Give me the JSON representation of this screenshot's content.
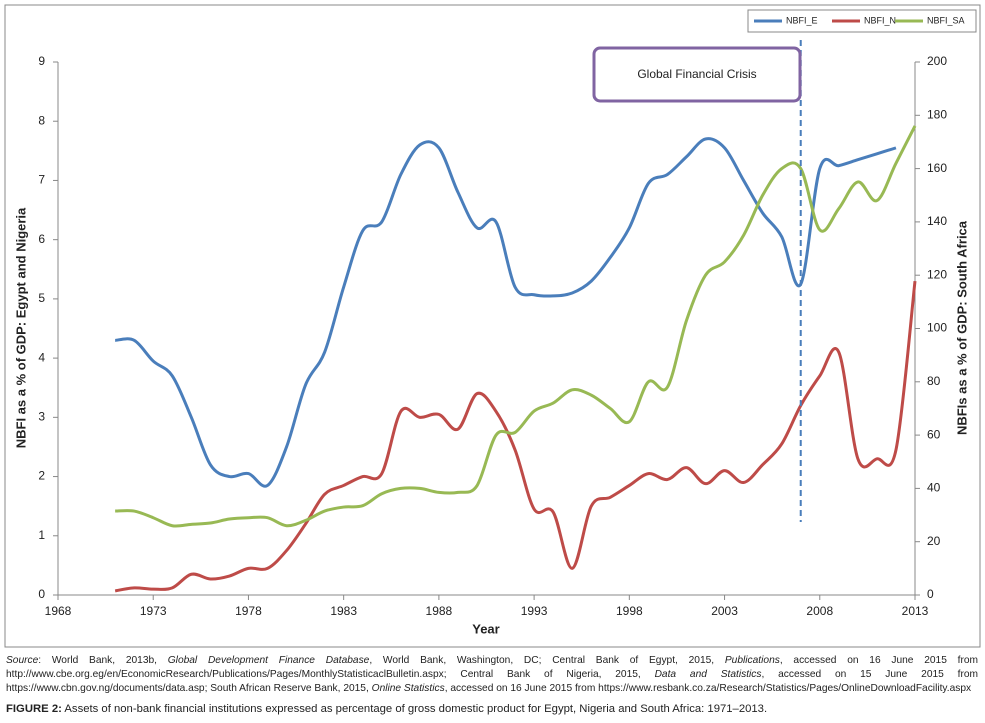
{
  "chart_data": {
    "type": "line",
    "x_label": "Year",
    "y_label": "NBFI as a % of GDP: Egypt and Nigeria",
    "y2_label": "NBFIs as a % of GDP: South Africa",
    "x": [
      1971,
      1972,
      1973,
      1974,
      1975,
      1976,
      1977,
      1978,
      1979,
      1980,
      1981,
      1982,
      1983,
      1984,
      1985,
      1986,
      1987,
      1988,
      1989,
      1990,
      1991,
      1992,
      1993,
      1994,
      1995,
      1996,
      1997,
      1998,
      1999,
      2000,
      2001,
      2002,
      2003,
      2004,
      2005,
      2006,
      2007,
      2008,
      2009,
      2010,
      2011,
      2012,
      2013
    ],
    "series": [
      {
        "name": "NBFI_E",
        "color": "#4a7ebb",
        "values": [
          4.3,
          4.3,
          3.95,
          3.7,
          3.0,
          2.2,
          2.0,
          2.05,
          1.85,
          2.5,
          3.55,
          4.1,
          5.2,
          6.15,
          6.3,
          7.1,
          7.6,
          7.55,
          6.8,
          6.2,
          6.3,
          5.2,
          5.07,
          5.05,
          5.1,
          5.3,
          5.7,
          6.2,
          6.95,
          7.1,
          7.4,
          7.7,
          7.55,
          7.0,
          6.45,
          6.05,
          5.25,
          7.2,
          7.25,
          7.35,
          7.45,
          7.55,
          null
        ]
      },
      {
        "name": "NBFI_N",
        "color": "#be4b48",
        "values": [
          0.07,
          0.12,
          0.1,
          0.12,
          0.35,
          0.27,
          0.32,
          0.45,
          0.45,
          0.75,
          1.2,
          1.7,
          1.85,
          2.0,
          2.05,
          3.1,
          3.0,
          3.05,
          2.8,
          3.4,
          3.1,
          2.45,
          1.45,
          1.4,
          0.45,
          1.5,
          1.65,
          1.85,
          2.05,
          1.95,
          2.15,
          1.88,
          2.1,
          1.9,
          2.2,
          2.55,
          3.2,
          3.7,
          4.1,
          2.3,
          2.3,
          2.45,
          5.3
        ]
      },
      {
        "name": "NBFI_SA",
        "color": "#98b954",
        "axis": "y2",
        "values": [
          31.5,
          31.5,
          29,
          26,
          26.5,
          27,
          28.5,
          29,
          29,
          26,
          28,
          31.5,
          33,
          33.5,
          38,
          40,
          40,
          38.5,
          38.5,
          41,
          60,
          61,
          69,
          72,
          77,
          75,
          70,
          65,
          80,
          78,
          103,
          120,
          125,
          135,
          150,
          160,
          160,
          137,
          145,
          155,
          148,
          162,
          176
        ]
      }
    ],
    "xlim": [
      1968,
      2013
    ],
    "xticks": [
      1968,
      1973,
      1978,
      1983,
      1988,
      1993,
      1998,
      2003,
      2008,
      2013
    ],
    "ylim": [
      0,
      9
    ],
    "yticks": [
      0,
      1,
      2,
      3,
      4,
      5,
      6,
      7,
      8,
      9
    ],
    "y2lim": [
      0,
      200
    ],
    "y2ticks": [
      0,
      20,
      40,
      60,
      80,
      100,
      120,
      140,
      160,
      180,
      200
    ],
    "legend": "top-right",
    "annotations": [
      {
        "text": "Global Financial Crisis",
        "x": 2007,
        "color": "#8064a2"
      }
    ]
  },
  "source": [
    "Source",
    ": World Bank, 2013b, ",
    "Global Development Finance Database",
    ", World Bank, Washington, DC; Central Bank of Egypt, 2015, ",
    "Publications",
    ", accessed on 16 June 2015 from http://www.cbe.org.eg/en/EconomicResearch/Publications/Pages/MonthlyStatisticaclBulletin.aspx; Central Bank of Nigeria, 2015, ",
    "Data and Statistics",
    ", accessed on 15 June 2015 from https://www.cbn.gov.ng/documents/data.asp; South African Reserve Bank, 2015, ",
    "Online Statistics",
    ", accessed on 16 June 2015 from https://www.resbank.co.za/Research/Statistics/Pages/OnlineDownloadFacility.aspx"
  ],
  "caption_label": "FIGURE 2:",
  "caption_text": " Assets of non-bank financial institutions expressed as percentage of gross domestic product for Egypt, Nigeria and South Africa: 1971–2013."
}
